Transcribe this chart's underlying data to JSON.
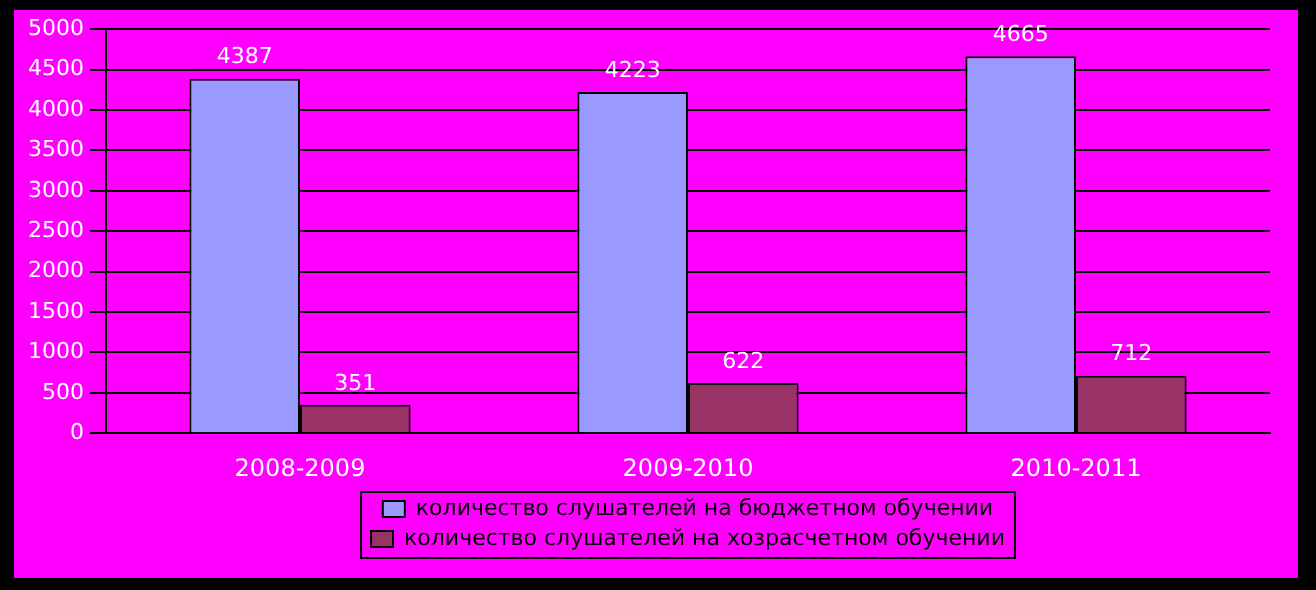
{
  "chart_data": {
    "type": "bar",
    "categories": [
      "2008-2009",
      "2009-2010",
      "2010-2011"
    ],
    "series": [
      {
        "name": "количество слушателей на бюджетном обучении",
        "color": "#9999ff",
        "values": [
          4387,
          4223,
          4665
        ]
      },
      {
        "name": "количество слушателей на хозрасчетном обучении",
        "color": "#993366",
        "values": [
          351,
          622,
          712
        ]
      }
    ],
    "ylim": [
      0,
      5000
    ],
    "yticks": [
      0,
      500,
      1000,
      1500,
      2000,
      2500,
      3000,
      3500,
      4000,
      4500,
      5000
    ],
    "grid": "y",
    "legend": "bottom",
    "data_labels": true
  }
}
